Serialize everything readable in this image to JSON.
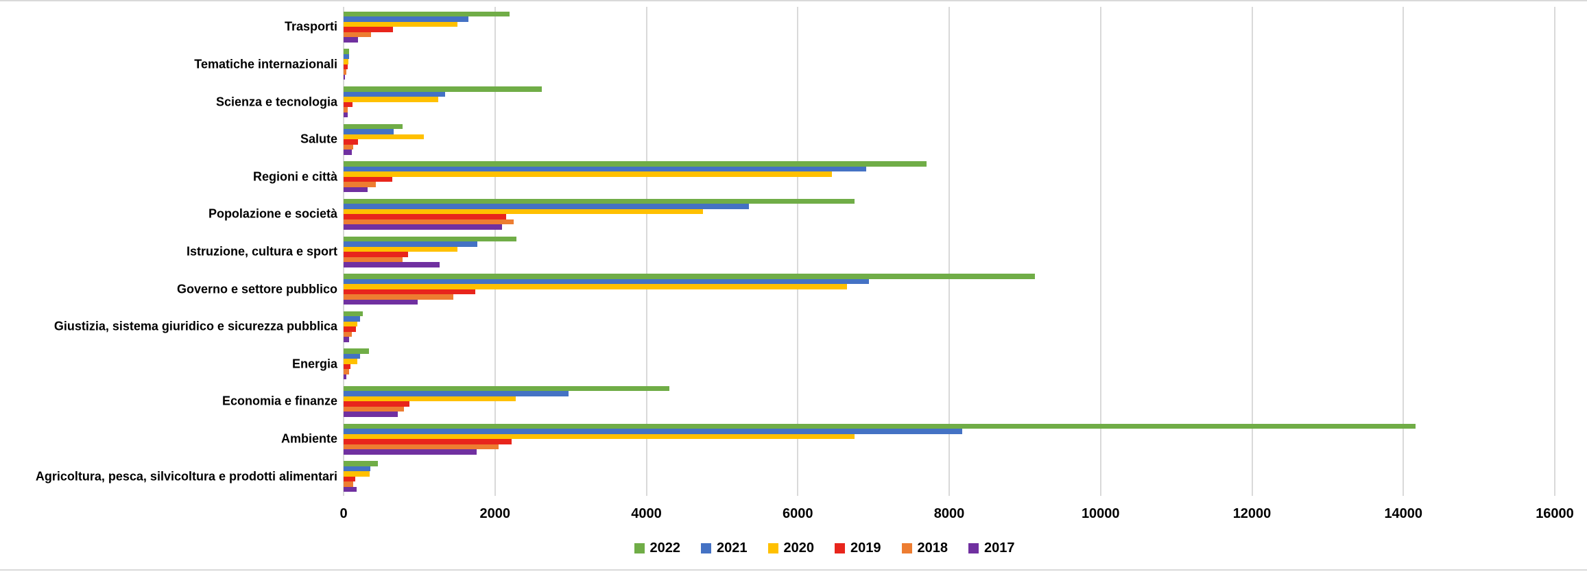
{
  "chart_data": {
    "type": "bar",
    "orientation": "horizontal",
    "title": "",
    "xlabel": "",
    "ylabel": "",
    "xlim": [
      0,
      16000
    ],
    "x_ticks": [
      0,
      2000,
      4000,
      6000,
      8000,
      10000,
      12000,
      14000,
      16000
    ],
    "grid": true,
    "legend_position": "bottom",
    "categories": [
      "Trasporti",
      "Tematiche internazionali",
      "Scienza e tecnologia",
      "Salute",
      "Regioni e città",
      "Popolazione e società",
      "Istruzione, cultura e sport",
      "Governo e settore pubblico",
      "Giustizia, sistema giuridico e sicurezza pubblica",
      "Energia",
      "Economia e finanze",
      "Ambiente",
      "Agricoltura, pesca, silvicoltura e prodotti alimentari"
    ],
    "series": [
      {
        "name": "2022",
        "color": "#70AD47",
        "values": [
          2190,
          75,
          2620,
          780,
          7700,
          6750,
          2280,
          9130,
          250,
          335,
          4300,
          14160,
          450
        ]
      },
      {
        "name": "2021",
        "color": "#4472C4",
        "values": [
          1650,
          70,
          1340,
          660,
          6900,
          5350,
          1770,
          6940,
          220,
          215,
          2970,
          8170,
          350
        ]
      },
      {
        "name": "2020",
        "color": "#FFC000",
        "values": [
          1500,
          65,
          1250,
          1060,
          6450,
          4750,
          1500,
          6650,
          180,
          180,
          2270,
          6750,
          345
        ]
      },
      {
        "name": "2019",
        "color": "#E8251C",
        "values": [
          650,
          50,
          120,
          190,
          640,
          2150,
          850,
          1740,
          165,
          95,
          870,
          2220,
          150
        ]
      },
      {
        "name": "2018",
        "color": "#ED7D31",
        "values": [
          360,
          40,
          50,
          130,
          430,
          2250,
          780,
          1450,
          110,
          70,
          800,
          2050,
          125
        ]
      },
      {
        "name": "2017",
        "color": "#7030A0",
        "values": [
          190,
          15,
          55,
          110,
          320,
          2090,
          1270,
          980,
          75,
          35,
          715,
          1760,
          175
        ]
      }
    ],
    "colors": {
      "gridline": "#D9D9D9",
      "text": "#000000",
      "background": "#FFFFFF"
    }
  }
}
